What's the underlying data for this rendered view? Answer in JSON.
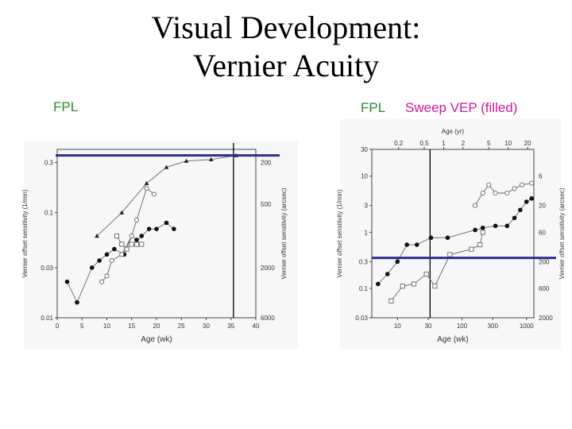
{
  "title_line1": "Visual Development:",
  "title_line2": "Vernier Acuity",
  "labels": {
    "left_tag": "FPL",
    "right_tag": "FPL",
    "right_tag2": "Sweep VEP (filled)",
    "color_green": "#2e8b2e",
    "color_magenta": "#d0189a"
  },
  "chart_data": [
    {
      "type": "line",
      "xlabel": "Age (wk)",
      "ylabel": "Vernier offset sensitivity (1/min)",
      "ylabel_right": "Vernier offset sensitivity (arcsec)",
      "x_ticks": [
        "0",
        "5",
        "10",
        "15",
        "20",
        "25",
        "30",
        "35",
        "40"
      ],
      "y_ticks": [
        "0.01",
        "0.03",
        "0.1",
        "0.3"
      ],
      "y_right_ticks": [
        "200",
        "500",
        "2000",
        "6000"
      ],
      "xlim": [
        0,
        40
      ],
      "ylim": [
        0.01,
        0.4
      ],
      "yscale": "log",
      "reference_line_y": 0.35,
      "reference_line_color": "#2f2f8f",
      "vertical_line_x": 35.5,
      "series": [
        {
          "marker": "triangle",
          "x": [
            8,
            13,
            18,
            22,
            26,
            31,
            36
          ],
          "y": [
            0.06,
            0.1,
            0.19,
            0.27,
            0.31,
            0.32,
            0.35
          ]
        },
        {
          "marker": "filled-circle",
          "x": [
            2,
            4,
            7,
            8.5,
            10,
            11.5,
            13.5,
            15,
            16,
            17,
            18.5,
            20,
            22,
            23.5
          ],
          "y": [
            0.022,
            0.014,
            0.03,
            0.035,
            0.04,
            0.045,
            0.04,
            0.06,
            0.055,
            0.06,
            0.07,
            0.07,
            0.08,
            0.07
          ]
        },
        {
          "marker": "open-square",
          "x": [
            12,
            13,
            14,
            15,
            16,
            17
          ],
          "y": [
            0.06,
            0.05,
            0.045,
            0.05,
            0.05,
            0.05
          ]
        },
        {
          "marker": "open-circle",
          "x": [
            9,
            10,
            11,
            13,
            15,
            16,
            18,
            19.5
          ],
          "y": [
            0.022,
            0.025,
            0.035,
            0.04,
            0.06,
            0.085,
            0.17,
            0.15
          ]
        }
      ]
    },
    {
      "type": "line",
      "xlabel": "Age (wk)",
      "xlabel_top": "Age (yr)",
      "ylabel": "Vernier offset sensitivity (1/min)",
      "ylabel_right": "Vernier offset sensitivity (arcsec)",
      "x_ticks": [
        "10",
        "30",
        "100",
        "300",
        "1000"
      ],
      "x_top_ticks": [
        "0.2",
        "0.5",
        "1",
        "2",
        "5",
        "10",
        "20"
      ],
      "y_ticks": [
        "0.03",
        "0.1",
        "0.3",
        "1",
        "3",
        "10",
        "30"
      ],
      "y_right_ticks": [
        "6",
        "20",
        "60",
        "200",
        "600",
        "2000"
      ],
      "xlim": [
        4,
        1300
      ],
      "ylim": [
        0.03,
        30
      ],
      "xscale": "log",
      "yscale": "log",
      "reference_line_y": 0.35,
      "reference_line_color": "#2f2f8f",
      "vertical_line_x": 32,
      "series": [
        {
          "marker": "filled-circle",
          "x": [
            5,
            7,
            10,
            14,
            20,
            33,
            60,
            160,
            210,
            330,
            500,
            650,
            800,
            1000,
            1200
          ],
          "y": [
            0.12,
            0.18,
            0.3,
            0.6,
            0.6,
            0.8,
            0.8,
            1.1,
            1.2,
            1.3,
            1.3,
            1.8,
            2.5,
            3.5,
            4
          ]
        },
        {
          "marker": "open-square",
          "x": [
            8,
            12,
            18,
            28,
            38,
            65,
            140,
            190,
            210
          ],
          "y": [
            0.06,
            0.11,
            0.12,
            0.18,
            0.11,
            0.4,
            0.5,
            0.6,
            1
          ]
        },
        {
          "marker": "open-circle",
          "x": [
            160,
            210,
            260,
            330,
            500,
            650,
            850,
            1200
          ],
          "y": [
            3,
            5,
            7,
            5,
            5,
            6,
            7,
            7.5
          ]
        }
      ]
    }
  ]
}
